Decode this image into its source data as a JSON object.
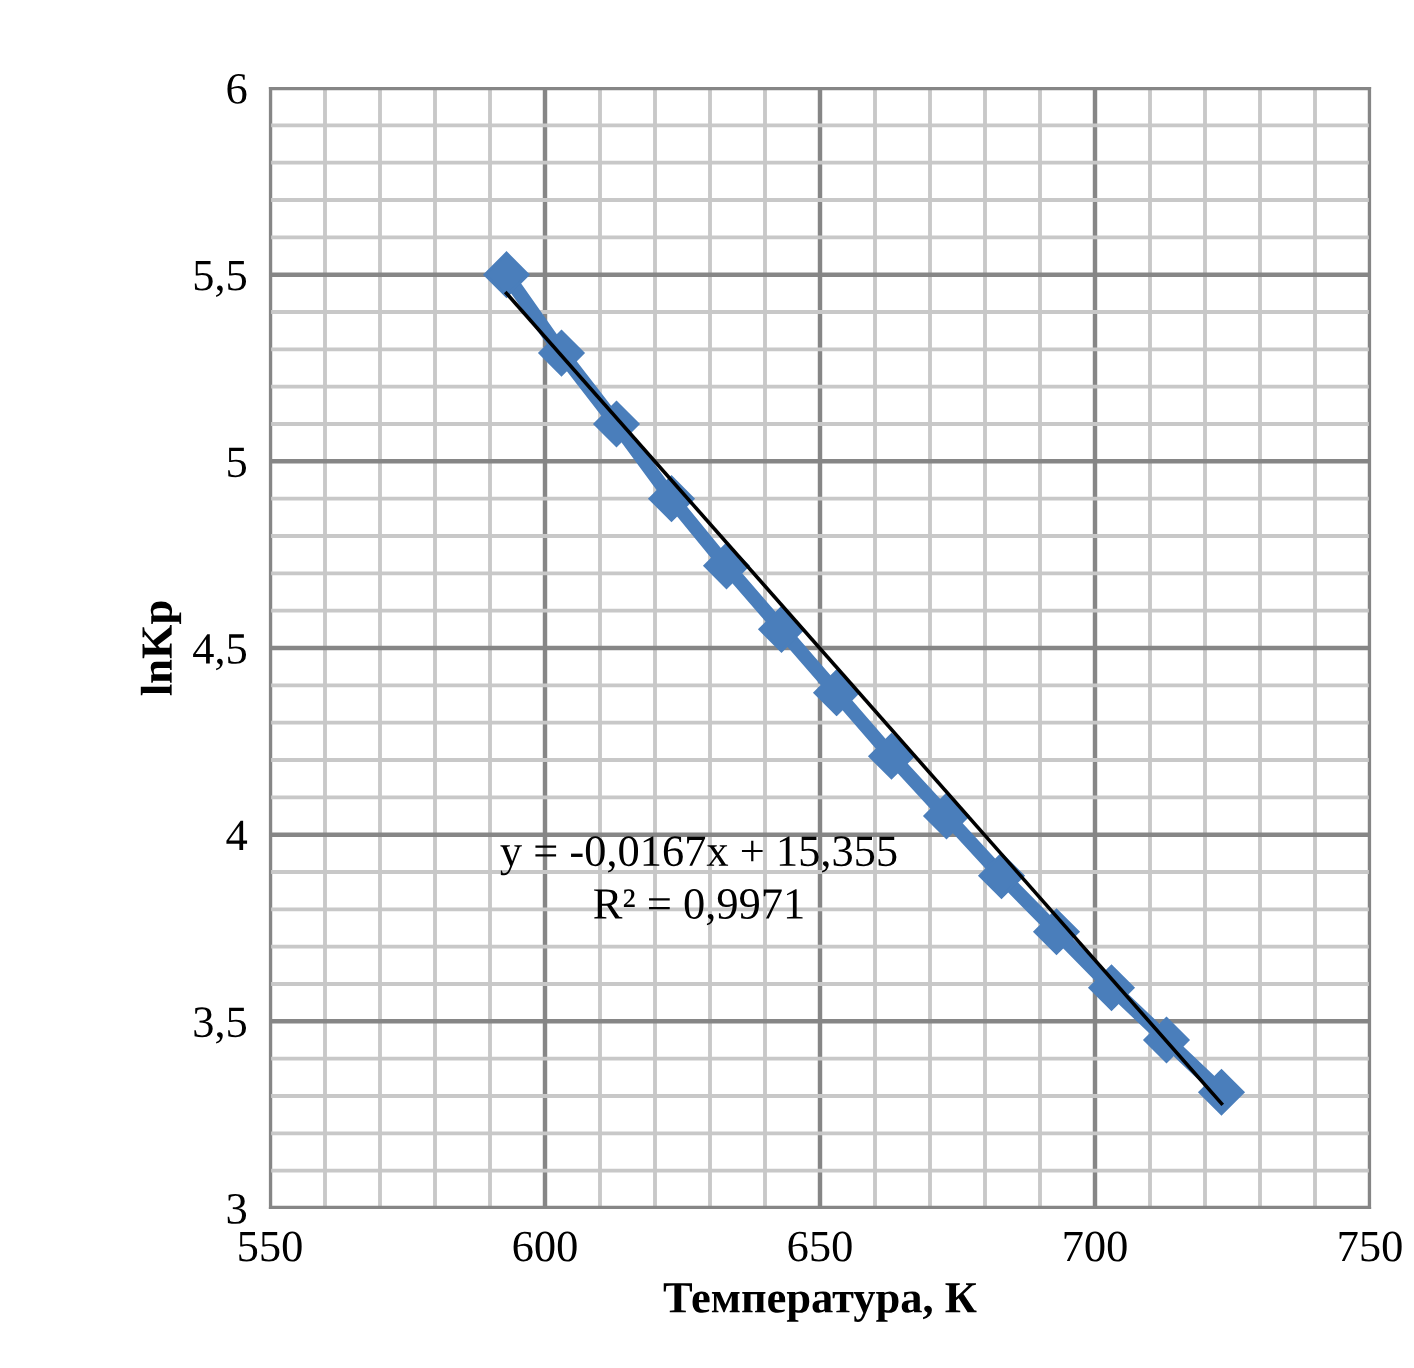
{
  "chart_data": {
    "type": "line",
    "xlabel": "Температура, К",
    "ylabel": "lnKp",
    "xlim": [
      550,
      750
    ],
    "ylim": [
      3,
      6
    ],
    "xticks": [
      550,
      {
        "value": 560,
        "label": null
      },
      {
        "value": 570,
        "label": null
      },
      {
        "value": 580,
        "label": null
      },
      {
        "value": 590,
        "label": null
      },
      600,
      {
        "value": 610,
        "label": null
      },
      {
        "value": 620,
        "label": null
      },
      {
        "value": 630,
        "label": null
      },
      {
        "value": 640,
        "label": null
      },
      650,
      {
        "value": 660,
        "label": null
      },
      {
        "value": 670,
        "label": null
      },
      {
        "value": 680,
        "label": null
      },
      {
        "value": 690,
        "label": null
      },
      700,
      {
        "value": 710,
        "label": null
      },
      {
        "value": 720,
        "label": null
      },
      {
        "value": 730,
        "label": null
      },
      {
        "value": 740,
        "label": null
      },
      750
    ],
    "yticks": [
      3,
      {
        "value": 3.1,
        "label": null
      },
      {
        "value": 3.2,
        "label": null
      },
      {
        "value": 3.3,
        "label": null
      },
      {
        "value": 3.4,
        "label": null
      },
      {
        "value": 3.5,
        "label": "3,5"
      },
      {
        "value": 3.6,
        "label": null
      },
      {
        "value": 3.7,
        "label": null
      },
      {
        "value": 3.8,
        "label": null
      },
      {
        "value": 3.9,
        "label": null
      },
      4,
      {
        "value": 4.1,
        "label": null
      },
      {
        "value": 4.2,
        "label": null
      },
      {
        "value": 4.3,
        "label": null
      },
      {
        "value": 4.4,
        "label": null
      },
      {
        "value": 4.5,
        "label": "4,5"
      },
      {
        "value": 4.6,
        "label": null
      },
      {
        "value": 4.7,
        "label": null
      },
      {
        "value": 4.8,
        "label": null
      },
      {
        "value": 4.9,
        "label": null
      },
      5,
      {
        "value": 5.1,
        "label": null
      },
      {
        "value": 5.2,
        "label": null
      },
      {
        "value": 5.3,
        "label": null
      },
      {
        "value": 5.4,
        "label": null
      },
      {
        "value": 5.5,
        "label": "5,5"
      },
      {
        "value": 5.6,
        "label": null
      },
      {
        "value": 5.7,
        "label": null
      },
      {
        "value": 5.8,
        "label": null
      },
      {
        "value": 5.9,
        "label": null
      },
      6
    ],
    "grid": true,
    "legend": false,
    "series": [
      {
        "marker": "diamond",
        "color": "#4a7ebb",
        "x": [
          593,
          603,
          613,
          623,
          633,
          643,
          653,
          663,
          673,
          683,
          693,
          703,
          713,
          723
        ],
        "values": [
          5.5,
          5.29,
          5.1,
          4.9,
          4.72,
          4.55,
          4.38,
          4.21,
          4.05,
          3.89,
          3.74,
          3.59,
          3.45,
          3.31
        ]
      },
      {
        "marker": "none",
        "color": "#000000",
        "x": [
          593,
          723
        ],
        "values": [
          5.45,
          3.28
        ]
      }
    ],
    "annotations": [
      "y = -0,0167x + 15,355",
      "R² = 0,9971"
    ]
  }
}
